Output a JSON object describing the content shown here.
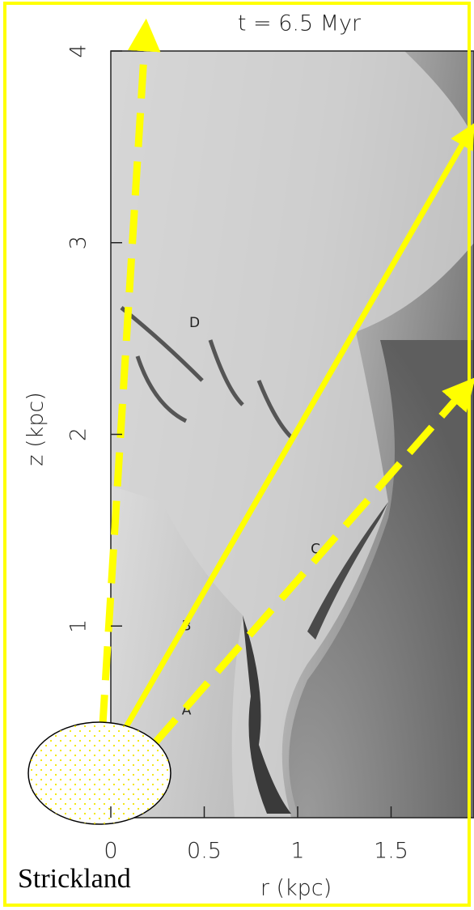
{
  "figure": {
    "title": "t = 6.5 Myr",
    "x_label": "r (kpc)",
    "y_label": "z (kpc)",
    "xlim": [
      0,
      2
    ],
    "ylim": [
      0,
      4
    ],
    "xticks": [
      0,
      0.5,
      1,
      1.5
    ],
    "yticks": [
      1,
      2,
      3,
      4
    ],
    "annotations": [
      {
        "label": "D",
        "r": 0.42,
        "z": 2.58
      },
      {
        "label": "C",
        "r": 1.07,
        "z": 1.4
      },
      {
        "label": "B",
        "r": 0.38,
        "z": 1.0
      },
      {
        "label": "A",
        "r": 0.38,
        "z": 0.56
      }
    ],
    "credit": "Strickland"
  }
}
